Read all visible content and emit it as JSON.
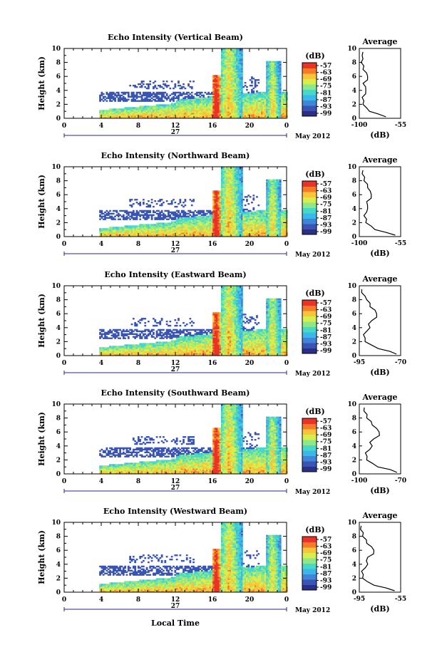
{
  "figure": {
    "month_label": "May 2012",
    "day_label": "27",
    "xlabel": "Local Time",
    "ylabel": "Height (km)",
    "avg_title": "Average",
    "avg_xlabel": "(dB)",
    "cbar_unit": "(dB)"
  },
  "colors": {
    "colormap": [
      "#2b2f86",
      "#3a54b4",
      "#3f86d8",
      "#3bb7e9",
      "#47d8c8",
      "#8ee889",
      "#d8ee4e",
      "#f7c43a",
      "#f57a2a",
      "#e83326"
    ],
    "text": "#000000",
    "background": "#ffffff"
  },
  "chart_data": [
    {
      "type": "heatmap",
      "title": "Echo Intensity (Vertical Beam)",
      "xlabel": "",
      "ylabel": "Height (km)",
      "x_ticks": [
        "0",
        "4",
        "8",
        "12",
        "16",
        "20",
        "0"
      ],
      "xlim": [
        0,
        24
      ],
      "y_ticks": [
        "0",
        "2",
        "4",
        "6",
        "8",
        "10"
      ],
      "ylim": [
        0,
        10
      ],
      "colorbar_ticks": [
        "-57",
        "-63",
        "-69",
        "-75",
        "-81",
        "-87",
        "-93",
        "-99"
      ],
      "clim": [
        -99,
        -57
      ],
      "avg_xlim": [
        -100,
        -55
      ],
      "avg_xticks": [
        "-100",
        "-55"
      ],
      "avg_profile": [
        [
          -70,
          0.2
        ],
        [
          -80,
          0.6
        ],
        [
          -88,
          1.0
        ],
        [
          -93,
          1.5
        ],
        [
          -95,
          2.0
        ],
        [
          -96,
          2.5
        ],
        [
          -96,
          3.0
        ],
        [
          -94,
          3.5
        ],
        [
          -92,
          4.0
        ],
        [
          -94,
          4.5
        ],
        [
          -95,
          5.0
        ],
        [
          -92,
          5.5
        ],
        [
          -90,
          6.0
        ],
        [
          -93,
          6.5
        ],
        [
          -95,
          7.0
        ],
        [
          -96,
          7.5
        ],
        [
          -97,
          8.0
        ],
        [
          -97,
          8.5
        ],
        [
          -96,
          9.0
        ],
        [
          -97,
          9.5
        ]
      ]
    },
    {
      "type": "heatmap",
      "title": "Echo Intensity (Northward Beam)",
      "xlabel": "",
      "ylabel": "Height (km)",
      "x_ticks": [
        "0",
        "4",
        "8",
        "12",
        "16",
        "20",
        "0"
      ],
      "xlim": [
        0,
        24
      ],
      "y_ticks": [
        "0",
        "2",
        "4",
        "6",
        "8",
        "10"
      ],
      "ylim": [
        0,
        10
      ],
      "colorbar_ticks": [
        "-57",
        "-63",
        "-69",
        "-75",
        "-81",
        "-87",
        "-93",
        "-99"
      ],
      "clim": [
        -99,
        -57
      ],
      "avg_xlim": [
        -100,
        -55
      ],
      "avg_xticks": [
        "-100",
        "-55"
      ],
      "avg_profile": [
        [
          -60,
          0.2
        ],
        [
          -72,
          0.6
        ],
        [
          -82,
          1.0
        ],
        [
          -88,
          1.5
        ],
        [
          -92,
          2.0
        ],
        [
          -93,
          2.5
        ],
        [
          -94,
          3.0
        ],
        [
          -93,
          3.5
        ],
        [
          -90,
          4.0
        ],
        [
          -92,
          4.5
        ],
        [
          -91,
          5.0
        ],
        [
          -88,
          5.5
        ],
        [
          -86,
          6.0
        ],
        [
          -89,
          6.5
        ],
        [
          -90,
          7.0
        ],
        [
          -92,
          7.5
        ],
        [
          -94,
          8.0
        ],
        [
          -95,
          8.5
        ],
        [
          -96,
          9.0
        ],
        [
          -97,
          9.5
        ]
      ]
    },
    {
      "type": "heatmap",
      "title": "Echo Intensity (Eastward Beam)",
      "xlabel": "",
      "ylabel": "Height (km)",
      "x_ticks": [
        "0",
        "4",
        "8",
        "12",
        "16",
        "20",
        "0"
      ],
      "xlim": [
        0,
        24
      ],
      "y_ticks": [
        "0",
        "2",
        "4",
        "6",
        "8",
        "10"
      ],
      "ylim": [
        0,
        10
      ],
      "colorbar_ticks": [
        "-57",
        "-63",
        "-69",
        "-75",
        "-81",
        "-87",
        "-93",
        "-99"
      ],
      "clim": [
        -99,
        -57
      ],
      "avg_xlim": [
        -95,
        -70
      ],
      "avg_xticks": [
        "-95",
        "-70"
      ],
      "avg_profile": [
        [
          -72,
          0.2
        ],
        [
          -77,
          0.6
        ],
        [
          -83,
          1.0
        ],
        [
          -88,
          1.5
        ],
        [
          -91,
          2.0
        ],
        [
          -92,
          2.5
        ],
        [
          -92,
          3.0
        ],
        [
          -91,
          3.5
        ],
        [
          -88,
          4.0
        ],
        [
          -90,
          4.5
        ],
        [
          -87,
          5.0
        ],
        [
          -85,
          5.5
        ],
        [
          -84,
          6.0
        ],
        [
          -86,
          6.5
        ],
        [
          -88,
          7.0
        ],
        [
          -89,
          7.5
        ],
        [
          -90,
          8.0
        ],
        [
          -92,
          8.5
        ],
        [
          -93,
          9.0
        ],
        [
          -94,
          9.5
        ]
      ]
    },
    {
      "type": "heatmap",
      "title": "Echo Intensity (Southward Beam)",
      "xlabel": "",
      "ylabel": "Height (km)",
      "x_ticks": [
        "0",
        "4",
        "8",
        "12",
        "16",
        "20",
        "0"
      ],
      "xlim": [
        0,
        24
      ],
      "y_ticks": [
        "0",
        "2",
        "4",
        "6",
        "8",
        "10"
      ],
      "ylim": [
        0,
        10
      ],
      "colorbar_ticks": [
        "-57",
        "-63",
        "-69",
        "-75",
        "-81",
        "-87",
        "-93",
        "-99"
      ],
      "clim": [
        -99,
        -57
      ],
      "avg_xlim": [
        -100,
        -70
      ],
      "avg_xticks": [
        "-100",
        "-70"
      ],
      "avg_profile": [
        [
          -72,
          0.2
        ],
        [
          -78,
          0.6
        ],
        [
          -86,
          1.0
        ],
        [
          -91,
          1.5
        ],
        [
          -94,
          2.0
        ],
        [
          -95,
          2.5
        ],
        [
          -95,
          3.0
        ],
        [
          -93,
          3.5
        ],
        [
          -90,
          4.0
        ],
        [
          -93,
          4.5
        ],
        [
          -89,
          5.0
        ],
        [
          -86,
          5.5
        ],
        [
          -85,
          6.0
        ],
        [
          -88,
          6.5
        ],
        [
          -90,
          7.0
        ],
        [
          -92,
          7.5
        ],
        [
          -94,
          8.0
        ],
        [
          -95,
          8.5
        ],
        [
          -96,
          9.0
        ],
        [
          -97,
          9.5
        ]
      ]
    },
    {
      "type": "heatmap",
      "title": "Echo Intensity (Westward Beam)",
      "xlabel": "Local Time",
      "ylabel": "Height (km)",
      "x_ticks": [
        "0",
        "4",
        "8",
        "12",
        "16",
        "20",
        "0"
      ],
      "xlim": [
        0,
        24
      ],
      "y_ticks": [
        "0",
        "2",
        "4",
        "6",
        "8",
        "10"
      ],
      "ylim": [
        0,
        10
      ],
      "colorbar_ticks": [
        "-57",
        "-63",
        "-69",
        "-75",
        "-81",
        "-87",
        "-93",
        "-99"
      ],
      "clim": [
        -99,
        -57
      ],
      "avg_xlim": [
        -95,
        -55
      ],
      "avg_xticks": [
        "-95",
        "-55"
      ],
      "avg_profile": [
        [
          -60,
          0.2
        ],
        [
          -70,
          0.6
        ],
        [
          -80,
          1.0
        ],
        [
          -88,
          1.5
        ],
        [
          -91,
          2.0
        ],
        [
          -92,
          2.5
        ],
        [
          -92,
          3.0
        ],
        [
          -90,
          3.5
        ],
        [
          -86,
          4.0
        ],
        [
          -89,
          4.5
        ],
        [
          -86,
          5.0
        ],
        [
          -82,
          5.5
        ],
        [
          -80,
          6.0
        ],
        [
          -84,
          6.5
        ],
        [
          -87,
          7.0
        ],
        [
          -89,
          7.5
        ],
        [
          -91,
          8.0
        ],
        [
          -92,
          8.5
        ],
        [
          -93,
          9.0
        ],
        [
          -94,
          9.5
        ]
      ]
    }
  ]
}
